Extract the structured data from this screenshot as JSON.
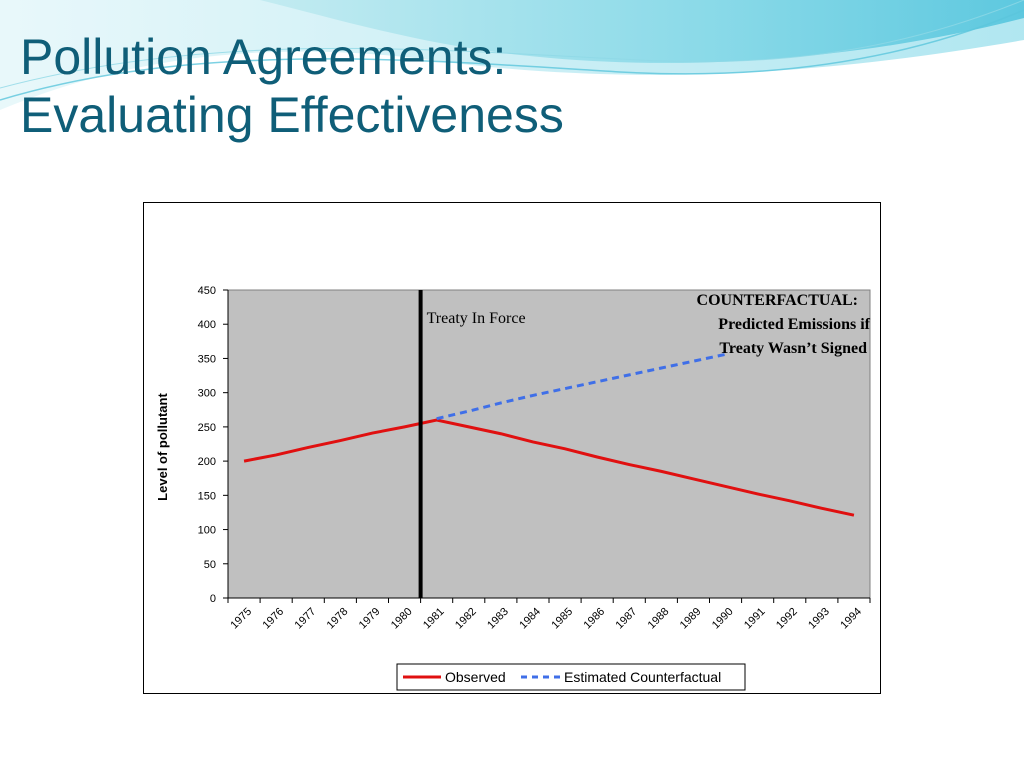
{
  "slide": {
    "title_line1": "Pollution Agreements:",
    "title_line2": "Evaluating Effectiveness",
    "accent_color": "#0f5e78"
  },
  "chart_data": {
    "type": "line",
    "title": "",
    "xlabel": "",
    "ylabel": "Level of pollutant",
    "ylim": [
      0,
      450
    ],
    "yticks": [
      0,
      50,
      100,
      150,
      200,
      250,
      300,
      350,
      400,
      450
    ],
    "categories": [
      "1975",
      "1976",
      "1977",
      "1978",
      "1979",
      "1980",
      "1981",
      "1982",
      "1983",
      "1984",
      "1985",
      "1986",
      "1987",
      "1988",
      "1989",
      "1990",
      "1991",
      "1992",
      "1993",
      "1994"
    ],
    "plot_background": "#c0c0c0",
    "grid": false,
    "legend_position": "bottom",
    "treaty_line": {
      "after_category": "1980",
      "label": "Treaty In Force",
      "color": "#000000"
    },
    "series": [
      {
        "name": "Observed",
        "color": "#e01010",
        "style": "solid",
        "values": [
          200,
          209,
          220,
          230,
          241,
          250,
          260,
          250,
          240,
          228,
          218,
          206,
          195,
          185,
          174,
          163,
          152,
          142,
          131,
          121
        ]
      },
      {
        "name": "Estimated Counterfactual",
        "color": "#3f6fe8",
        "style": "dashed",
        "values": [
          null,
          null,
          null,
          null,
          null,
          null,
          262,
          273,
          285,
          296,
          306,
          316,
          326,
          336,
          346,
          356,
          null,
          null,
          null,
          null
        ]
      }
    ],
    "annotation": {
      "line1": "COUNTERFACTUAL:",
      "line2": "Predicted Emissions if",
      "line3": "Treaty Wasn’t Signed"
    }
  }
}
